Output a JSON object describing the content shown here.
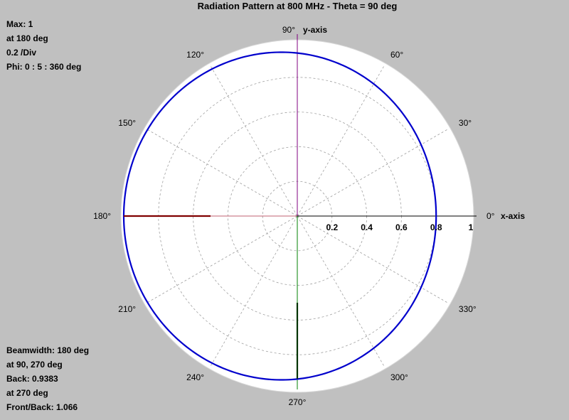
{
  "chart_data": {
    "type": "line",
    "subtype": "polar",
    "title": "Radiation Pattern at 800 MHz - Theta = 90 deg",
    "info_top": [
      "Max: 1",
      "at 180 deg",
      "0.2 /Div",
      "Phi: 0 : 5 : 360 deg"
    ],
    "info_bottom": [
      "Beamwidth: 180 deg",
      "at 90, 270 deg",
      "Back: 0.9383",
      "at 270 deg",
      "Front/Back: 1.066"
    ],
    "x_axis_label": "x-axis",
    "y_axis_label": "y-axis",
    "rmax": 1,
    "r_ticks": [
      0.2,
      0.4,
      0.6,
      0.8,
      1
    ],
    "r_tick_labels": [
      "0.2",
      "0.4",
      "0.6",
      "0.8",
      "1"
    ],
    "angle_ticks": [
      0,
      30,
      60,
      90,
      120,
      150,
      180,
      210,
      240,
      270,
      300,
      330
    ],
    "angle_tick_labels": [
      "0°",
      "30°",
      "60°",
      "90°",
      "120°",
      "150°",
      "180°",
      "210°",
      "240°",
      "270°",
      "300°",
      "330°"
    ],
    "pattern": {
      "phi_start": 0,
      "phi_step": 5,
      "phi_end": 360,
      "r_at_0": 0.8,
      "r_at_90": 0.94,
      "r_at_180": 1,
      "r_at_270": 0.94,
      "color": "#0000cc"
    },
    "markers": [
      {
        "angle": 180,
        "r_from": 0.5,
        "r_to": 1,
        "color": "#800000"
      },
      {
        "angle": 270,
        "r_from": 0.5,
        "r_to": 0.9383,
        "color": "#003300"
      }
    ],
    "grid": true
  },
  "colors": {
    "background": "#c0c0c0",
    "plot_face": "#ffffff",
    "grid": "#a0a0a0",
    "pattern": "#0000cc",
    "y_axis_pos": "#800080",
    "y_axis_neg": "#008000",
    "x_axis_neg": "#c06070",
    "x_axis_pos": "#000000"
  }
}
